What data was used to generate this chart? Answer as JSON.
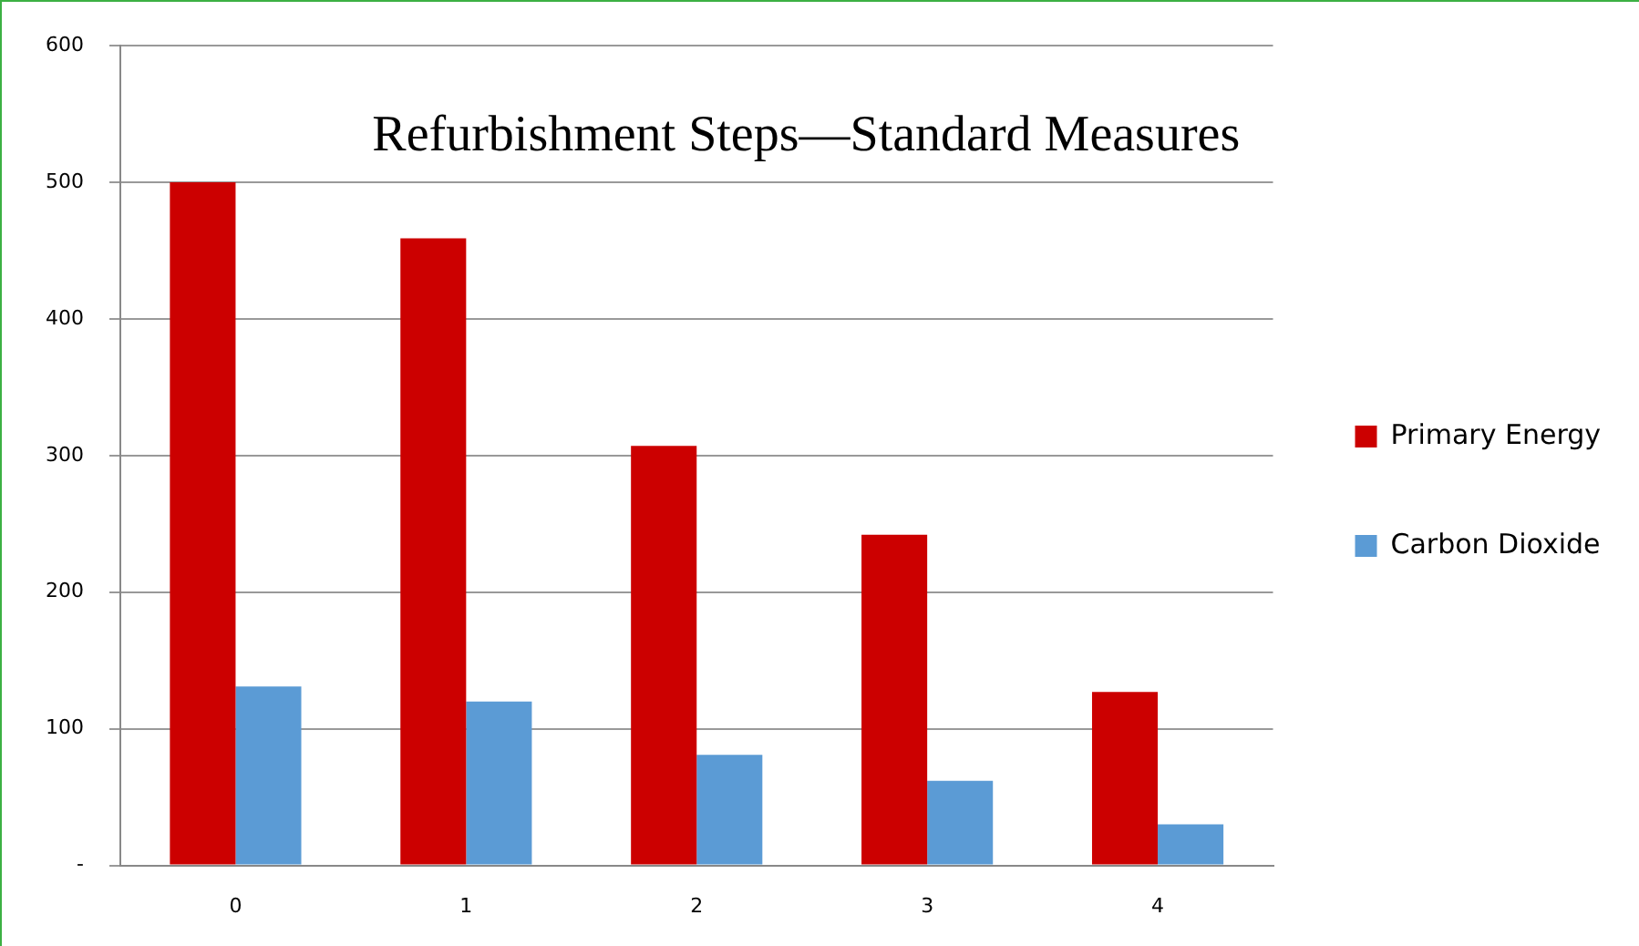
{
  "chart_data": {
    "type": "bar",
    "title": "Refurbishment Steps—Standard Measures",
    "categories": [
      "0",
      "1",
      "2",
      "3",
      "4"
    ],
    "series": [
      {
        "name": "Primary Energy",
        "color": "#cc0000",
        "values": [
          500,
          459,
          307,
          242,
          127
        ]
      },
      {
        "name": "Carbon Dioxide",
        "color": "#5b9bd5",
        "values": [
          131,
          120,
          81,
          62,
          30
        ]
      }
    ],
    "ylim": [
      0,
      600
    ],
    "yticks": [
      {
        "value": 0,
        "label": "-"
      },
      100,
      200,
      300,
      400,
      500,
      600
    ],
    "grid": "y",
    "legend": "right"
  }
}
